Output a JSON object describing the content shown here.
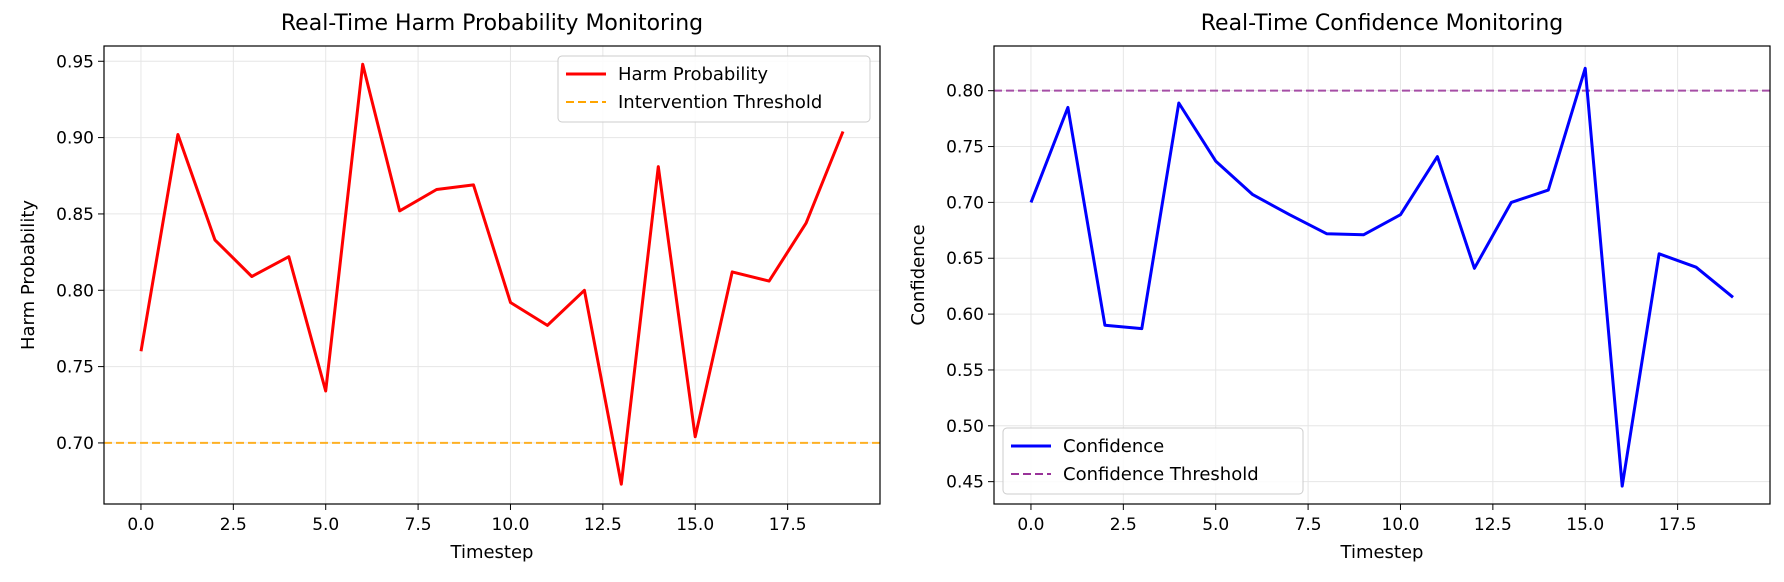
{
  "chart_data": [
    {
      "type": "line",
      "title": "Real-Time Harm Probability Monitoring",
      "xlabel": "Timestep",
      "ylabel": "Harm Probability",
      "xlim": [
        -1,
        20
      ],
      "ylim": [
        0.66,
        0.96
      ],
      "xticks": [
        0.0,
        2.5,
        5.0,
        7.5,
        10.0,
        12.5,
        15.0,
        17.5
      ],
      "xtick_labels": [
        "0.0",
        "2.5",
        "5.0",
        "7.5",
        "10.0",
        "12.5",
        "15.0",
        "17.5"
      ],
      "yticks": [
        0.7,
        0.75,
        0.8,
        0.85,
        0.9,
        0.95
      ],
      "ytick_labels": [
        "0.70",
        "0.75",
        "0.80",
        "0.85",
        "0.90",
        "0.95"
      ],
      "grid": true,
      "legend_position": "top-right",
      "series": [
        {
          "name": "Harm Probability",
          "color": "#ff0000",
          "style": "solid",
          "x": [
            0,
            1,
            2,
            3,
            4,
            5,
            6,
            7,
            8,
            9,
            10,
            11,
            12,
            13,
            14,
            15,
            16,
            17,
            18,
            19
          ],
          "values": [
            0.76,
            0.902,
            0.833,
            0.809,
            0.822,
            0.734,
            0.948,
            0.852,
            0.866,
            0.869,
            0.792,
            0.777,
            0.8,
            0.673,
            0.881,
            0.704,
            0.812,
            0.806,
            0.844,
            0.904
          ]
        }
      ],
      "hlines": [
        {
          "name": "Intervention Threshold",
          "y": 0.7,
          "color": "#ffa500",
          "style": "dashed"
        }
      ]
    },
    {
      "type": "line",
      "title": "Real-Time Confidence Monitoring",
      "xlabel": "Timestep",
      "ylabel": "Confidence",
      "xlim": [
        -1,
        20
      ],
      "ylim": [
        0.43,
        0.84
      ],
      "xticks": [
        0.0,
        2.5,
        5.0,
        7.5,
        10.0,
        12.5,
        15.0,
        17.5
      ],
      "xtick_labels": [
        "0.0",
        "2.5",
        "5.0",
        "7.5",
        "10.0",
        "12.5",
        "15.0",
        "17.5"
      ],
      "yticks": [
        0.45,
        0.5,
        0.55,
        0.6,
        0.65,
        0.7,
        0.75,
        0.8
      ],
      "ytick_labels": [
        "0.45",
        "0.50",
        "0.55",
        "0.60",
        "0.65",
        "0.70",
        "0.75",
        "0.80"
      ],
      "grid": true,
      "legend_position": "bottom-left",
      "series": [
        {
          "name": "Confidence",
          "color": "#0000ff",
          "style": "solid",
          "x": [
            0,
            1,
            2,
            3,
            4,
            5,
            6,
            7,
            8,
            9,
            10,
            11,
            12,
            13,
            14,
            15,
            16,
            17,
            18,
            19
          ],
          "values": [
            0.7,
            0.785,
            0.59,
            0.587,
            0.789,
            0.737,
            0.707,
            0.689,
            0.672,
            0.671,
            0.689,
            0.741,
            0.641,
            0.7,
            0.711,
            0.82,
            0.446,
            0.654,
            0.642,
            0.615
          ]
        }
      ],
      "hlines": [
        {
          "name": "Confidence Threshold",
          "y": 0.8,
          "color": "#993399",
          "style": "dashed"
        }
      ]
    }
  ]
}
